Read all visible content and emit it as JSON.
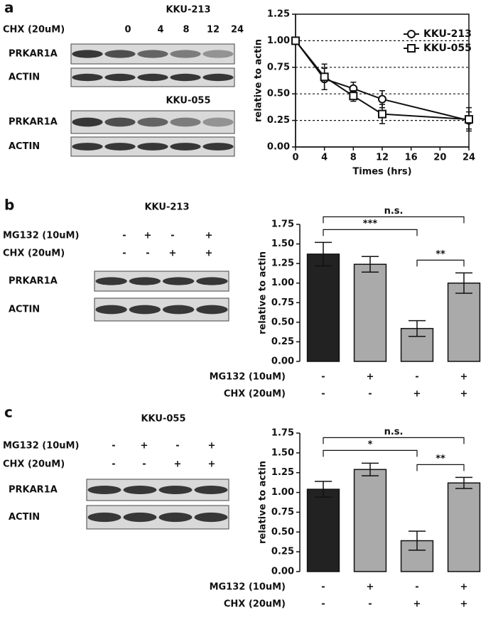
{
  "panels": [
    {
      "label": "a",
      "blots": [
        {
          "title": "KKU-213",
          "treatments": [
            {
              "label": "CHX (20uM)",
              "signs": [
                "0",
                "4",
                "8",
                "12",
                "24"
              ]
            }
          ],
          "rows": [
            "PRKAR1A",
            "ACTIN"
          ]
        },
        {
          "title": "KKU-055",
          "rows": [
            "PRKAR1A",
            "ACTIN"
          ]
        }
      ]
    },
    {
      "label": "b",
      "blots": [
        {
          "title": "KKU-213",
          "treatments": [
            {
              "label": "MG132 (10uM)",
              "signs": [
                "-",
                "+",
                "-",
                "+"
              ]
            },
            {
              "label": "CHX (20uM)",
              "signs": [
                "-",
                "-",
                "+",
                "+"
              ]
            }
          ],
          "rows": [
            "PRKAR1A",
            "ACTIN"
          ]
        }
      ]
    },
    {
      "label": "c",
      "blots": [
        {
          "title": "KKU-055",
          "treatments": [
            {
              "label": "MG132 (10uM)",
              "signs": [
                "-",
                "+",
                "-",
                "+"
              ]
            },
            {
              "label": "CHX (20uM)",
              "signs": [
                "-",
                "-",
                "+",
                "+"
              ]
            }
          ],
          "rows": [
            "PRKAR1A",
            "ACTIN"
          ]
        }
      ]
    }
  ],
  "chart_data": [
    {
      "type": "line",
      "x": [
        0,
        4,
        8,
        12,
        24
      ],
      "series": [
        {
          "name": "KKU-213",
          "marker": "circle",
          "color": "#111111",
          "values": [
            1.0,
            0.64,
            0.55,
            0.45,
            0.25
          ],
          "errors": [
            0,
            0.1,
            0.06,
            0.08,
            0.08
          ]
        },
        {
          "name": "KKU-055",
          "marker": "square",
          "color": "#111111",
          "values": [
            1.0,
            0.66,
            0.48,
            0.31,
            0.26
          ],
          "errors": [
            0,
            0.12,
            0.05,
            0.09,
            0.11
          ]
        }
      ],
      "xlim": [
        0,
        24
      ],
      "xticks": [
        0,
        4,
        8,
        12,
        16,
        20,
        24
      ],
      "ylim": [
        0,
        1.25
      ],
      "yticks": [
        {
          "value": 0,
          "label": "0.00"
        },
        {
          "value": 0.25,
          "label": "0.25"
        },
        {
          "value": 0.5,
          "label": "0.50"
        },
        {
          "value": 0.75,
          "label": "0.75"
        },
        {
          "value": 1,
          "label": "1.00"
        },
        {
          "value": 1.25,
          "label": "1.25"
        }
      ],
      "xlabel": "Times (hrs)",
      "ylabel": "relative to actin",
      "grid": true,
      "legend": "upper right"
    },
    {
      "type": "bar",
      "categories": [
        null,
        null,
        null,
        null
      ],
      "values": [
        1.37,
        1.24,
        0.42,
        1.0
      ],
      "errors": [
        0.15,
        0.1,
        0.1,
        0.13
      ],
      "colors": [
        "#222222",
        "#aaaaaa",
        "#aaaaaa",
        "#aaaaaa"
      ],
      "ylim": [
        0,
        1.75
      ],
      "yticks": [
        {
          "value": 0,
          "label": "0.00"
        },
        {
          "value": 0.25,
          "label": "0.25"
        },
        {
          "value": 0.5,
          "label": "0.50"
        },
        {
          "value": 0.75,
          "label": "0.75"
        },
        {
          "value": 1,
          "label": "1.00"
        },
        {
          "value": 1.25,
          "label": "1.25"
        },
        {
          "value": 1.5,
          "label": "1.50"
        },
        {
          "value": 1.75,
          "label": "1.75"
        }
      ],
      "ylabel": "relative to actin",
      "treatments": [
        {
          "label": "MG132 (10uM)",
          "signs": [
            "-",
            "+",
            "-",
            "+"
          ]
        },
        {
          "label": "CHX (20uM)",
          "signs": [
            "-",
            "-",
            "+",
            "+"
          ]
        }
      ],
      "annotations": [
        {
          "from": 2,
          "to": 3,
          "label": "**"
        },
        {
          "from": 0,
          "to": 2,
          "label": "***"
        },
        {
          "from": 0,
          "to": 3,
          "label": "n.s."
        }
      ]
    },
    {
      "type": "bar",
      "categories": [
        null,
        null,
        null,
        null
      ],
      "values": [
        1.04,
        1.29,
        0.39,
        1.12
      ],
      "errors": [
        0.1,
        0.08,
        0.12,
        0.07
      ],
      "colors": [
        "#222222",
        "#aaaaaa",
        "#aaaaaa",
        "#aaaaaa"
      ],
      "ylim": [
        0,
        1.75
      ],
      "yticks": [
        {
          "value": 0,
          "label": "0.00"
        },
        {
          "value": 0.25,
          "label": "0.25"
        },
        {
          "value": 0.5,
          "label": "0.50"
        },
        {
          "value": 0.75,
          "label": "0.75"
        },
        {
          "value": 1,
          "label": "1.00"
        },
        {
          "value": 1.25,
          "label": "1.25"
        },
        {
          "value": 1.5,
          "label": "1.50"
        },
        {
          "value": 1.75,
          "label": "1.75"
        }
      ],
      "ylabel": "relative to actin",
      "treatments": [
        {
          "label": "MG132 (10uM)",
          "signs": [
            "-",
            "+",
            "-",
            "+"
          ]
        },
        {
          "label": "CHX  (20uM)",
          "signs": [
            "-",
            "-",
            "+",
            "+"
          ]
        }
      ],
      "annotations": [
        {
          "from": 2,
          "to": 3,
          "label": "**"
        },
        {
          "from": 0,
          "to": 2,
          "label": "*"
        },
        {
          "from": 0,
          "to": 3,
          "label": "n.s."
        }
      ]
    }
  ]
}
